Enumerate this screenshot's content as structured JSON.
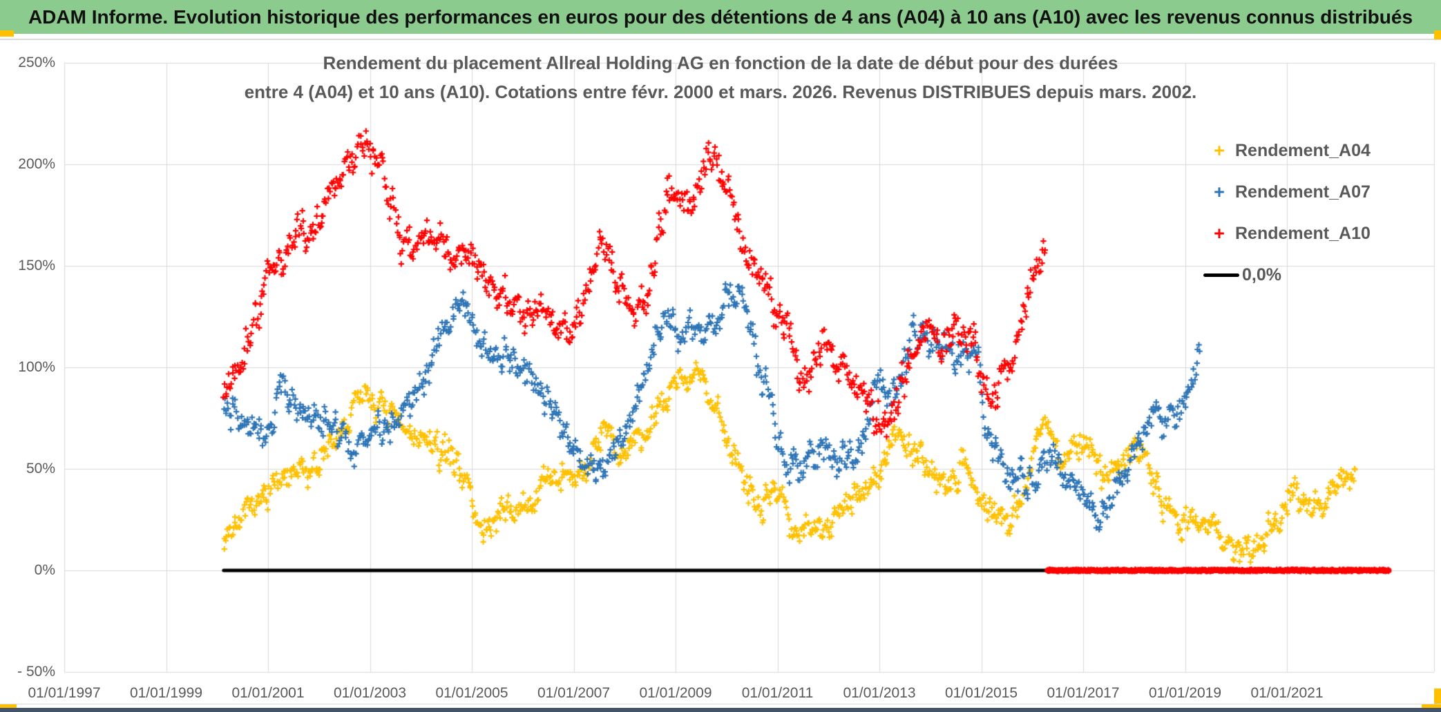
{
  "header": {
    "title": "ADAM Informe. Evolution historique des performances en euros pour des détentions de 4 ans (A04) à 10 ans (A10) avec les revenus connus distribués",
    "bg_color": "#8CCB8E",
    "accent_gold": "#FFC000",
    "divider_color": "#D9D9D9",
    "footer_band_color": "#44546A"
  },
  "chart_data": {
    "type": "scatter",
    "title_line1": "Rendement du placement Allreal Holding AG en fonction de la date de début pour des durées",
    "title_line2": "entre 4 (A04) et 10 ans (A10). Cotations entre févr. 2000 et mars. 2026. Revenus DISTRIBUES depuis mars. 2002.",
    "grid": true,
    "legend_position": "right-inside",
    "style": {
      "text_color": "#595959",
      "grid_color": "#D9D9D9",
      "axis_color": "#C9C9C9",
      "background": "#FFFFFF"
    },
    "x_axis": {
      "type": "date",
      "range_years": [
        1997.0,
        2023.9
      ],
      "tick_years": [
        1997,
        1999,
        2001,
        2003,
        2005,
        2007,
        2009,
        2011,
        2013,
        2015,
        2017,
        2019,
        2021
      ],
      "tick_labels": [
        "01/01/1997",
        "01/01/1999",
        "01/01/2001",
        "01/01/2003",
        "01/01/2005",
        "01/01/2007",
        "01/01/2009",
        "01/01/2011",
        "01/01/2013",
        "01/01/2015",
        "01/01/2017",
        "01/01/2019",
        "01/01/2021"
      ]
    },
    "y_axis": {
      "range_pct": [
        -50,
        250
      ],
      "tick_values": [
        250,
        200,
        150,
        100,
        50,
        0,
        -50
      ],
      "tick_labels": [
        "250%",
        "200%",
        "150%",
        "100%",
        "50%",
        "0%",
        "- 50%"
      ]
    },
    "zero_line": {
      "label": "0,0%",
      "color": "#000000",
      "value_pct": 0.0,
      "start_year": 2000.13,
      "end_year": 2016.3
    },
    "series": [
      {
        "name": "Rendement_A04",
        "color": "#FFC000",
        "marker": "+",
        "start_year": 2000.13,
        "end_year": 2022.35,
        "scatter_band_pct": 9,
        "anchors_year_pct": [
          [
            2000.15,
            18
          ],
          [
            2000.5,
            25
          ],
          [
            2000.8,
            32
          ],
          [
            2001.1,
            42
          ],
          [
            2001.4,
            45
          ],
          [
            2001.7,
            48
          ],
          [
            2002.0,
            53
          ],
          [
            2002.3,
            62
          ],
          [
            2002.6,
            75
          ],
          [
            2002.9,
            90
          ],
          [
            2003.1,
            84
          ],
          [
            2003.35,
            78
          ],
          [
            2003.6,
            70
          ],
          [
            2003.9,
            66
          ],
          [
            2004.15,
            62
          ],
          [
            2004.4,
            58
          ],
          [
            2004.65,
            55
          ],
          [
            2004.9,
            46
          ],
          [
            2005.05,
            25
          ],
          [
            2005.3,
            20
          ],
          [
            2005.6,
            28
          ],
          [
            2005.9,
            30
          ],
          [
            2006.2,
            33
          ],
          [
            2006.5,
            45
          ],
          [
            2006.8,
            50
          ],
          [
            2007.05,
            44
          ],
          [
            2007.3,
            55
          ],
          [
            2007.6,
            74
          ],
          [
            2007.85,
            58
          ],
          [
            2008.1,
            58
          ],
          [
            2008.35,
            63
          ],
          [
            2008.6,
            77
          ],
          [
            2008.9,
            92
          ],
          [
            2009.2,
            95
          ],
          [
            2009.5,
            97
          ],
          [
            2009.8,
            78
          ],
          [
            2010.1,
            60
          ],
          [
            2010.45,
            42
          ],
          [
            2010.7,
            31
          ],
          [
            2011.0,
            42
          ],
          [
            2011.3,
            22
          ],
          [
            2011.6,
            22
          ],
          [
            2011.9,
            23
          ],
          [
            2012.2,
            27
          ],
          [
            2012.5,
            35
          ],
          [
            2012.8,
            40
          ],
          [
            2013.05,
            48
          ],
          [
            2013.25,
            70
          ],
          [
            2013.5,
            62
          ],
          [
            2013.8,
            55
          ],
          [
            2014.1,
            45
          ],
          [
            2014.4,
            46
          ],
          [
            2014.7,
            53
          ],
          [
            2015.0,
            35
          ],
          [
            2015.3,
            28
          ],
          [
            2015.6,
            23
          ],
          [
            2015.9,
            45
          ],
          [
            2016.2,
            78
          ],
          [
            2016.5,
            55
          ],
          [
            2016.8,
            60
          ],
          [
            2017.1,
            62
          ],
          [
            2017.4,
            45
          ],
          [
            2017.7,
            50
          ],
          [
            2018.0,
            60
          ],
          [
            2018.25,
            57
          ],
          [
            2018.55,
            37
          ],
          [
            2018.85,
            27
          ],
          [
            2019.15,
            20
          ],
          [
            2019.5,
            25
          ],
          [
            2019.9,
            11
          ],
          [
            2020.1,
            8
          ],
          [
            2020.4,
            13
          ],
          [
            2020.7,
            22
          ],
          [
            2021.0,
            35
          ],
          [
            2021.15,
            44
          ],
          [
            2021.4,
            28
          ],
          [
            2021.7,
            34
          ],
          [
            2022.0,
            45
          ],
          [
            2022.3,
            47
          ]
        ]
      },
      {
        "name": "Rendement_A07",
        "color": "#2E75B6",
        "marker": "+",
        "start_year": 2000.13,
        "end_year": 2019.3,
        "scatter_band_pct": 10,
        "anchors_year_pct": [
          [
            2000.15,
            80
          ],
          [
            2000.5,
            73
          ],
          [
            2000.8,
            68
          ],
          [
            2001.05,
            70
          ],
          [
            2001.25,
            97
          ],
          [
            2001.5,
            85
          ],
          [
            2001.8,
            78
          ],
          [
            2002.1,
            75
          ],
          [
            2002.45,
            66
          ],
          [
            2002.7,
            60
          ],
          [
            2003.0,
            72
          ],
          [
            2003.3,
            72
          ],
          [
            2003.6,
            78
          ],
          [
            2003.9,
            88
          ],
          [
            2004.15,
            98
          ],
          [
            2004.45,
            115
          ],
          [
            2004.7,
            127
          ],
          [
            2004.9,
            131
          ],
          [
            2005.1,
            115
          ],
          [
            2005.4,
            108
          ],
          [
            2005.7,
            106
          ],
          [
            2006.0,
            101
          ],
          [
            2006.2,
            95
          ],
          [
            2006.45,
            85
          ],
          [
            2006.7,
            75
          ],
          [
            2007.0,
            60
          ],
          [
            2007.3,
            50
          ],
          [
            2007.55,
            45
          ],
          [
            2007.8,
            62
          ],
          [
            2008.1,
            73
          ],
          [
            2008.35,
            95
          ],
          [
            2008.6,
            114
          ],
          [
            2008.85,
            127
          ],
          [
            2009.1,
            113
          ],
          [
            2009.35,
            120
          ],
          [
            2009.6,
            116
          ],
          [
            2009.9,
            128
          ],
          [
            2010.15,
            135
          ],
          [
            2010.3,
            142
          ],
          [
            2010.55,
            112
          ],
          [
            2010.8,
            85
          ],
          [
            2011.1,
            58
          ],
          [
            2011.45,
            50
          ],
          [
            2011.8,
            54
          ],
          [
            2012.1,
            52
          ],
          [
            2012.4,
            53
          ],
          [
            2012.7,
            64
          ],
          [
            2012.95,
            100
          ],
          [
            2013.2,
            82
          ],
          [
            2013.45,
            95
          ],
          [
            2013.7,
            121
          ],
          [
            2014.0,
            112
          ],
          [
            2014.3,
            110
          ],
          [
            2014.6,
            104
          ],
          [
            2014.9,
            106
          ],
          [
            2015.1,
            72
          ],
          [
            2015.4,
            52
          ],
          [
            2015.7,
            46
          ],
          [
            2016.0,
            42
          ],
          [
            2016.3,
            56
          ],
          [
            2016.6,
            50
          ],
          [
            2016.9,
            44
          ],
          [
            2017.1,
            35
          ],
          [
            2017.35,
            27
          ],
          [
            2017.6,
            38
          ],
          [
            2017.85,
            52
          ],
          [
            2018.1,
            65
          ],
          [
            2018.35,
            78
          ],
          [
            2018.6,
            74
          ],
          [
            2018.85,
            78
          ],
          [
            2019.05,
            88
          ],
          [
            2019.25,
            104
          ]
        ]
      },
      {
        "name": "Rendement_A10",
        "color": "#FF0000",
        "marker": "+",
        "start_year": 2000.13,
        "end_year": 2016.27,
        "scatter_band_pct": 11,
        "zero_tail_years": [
          2016.3,
          2023.0
        ],
        "anchors_year_pct": [
          [
            2000.15,
            90
          ],
          [
            2000.45,
            102
          ],
          [
            2000.7,
            122
          ],
          [
            2000.95,
            140
          ],
          [
            2001.15,
            150
          ],
          [
            2001.4,
            155
          ],
          [
            2001.65,
            172
          ],
          [
            2001.85,
            163
          ],
          [
            2002.1,
            178
          ],
          [
            2002.4,
            195
          ],
          [
            2002.7,
            200
          ],
          [
            2002.95,
            212
          ],
          [
            2003.15,
            197
          ],
          [
            2003.4,
            180
          ],
          [
            2003.6,
            166
          ],
          [
            2003.8,
            158
          ],
          [
            2004.0,
            168
          ],
          [
            2004.25,
            162
          ],
          [
            2004.5,
            160
          ],
          [
            2004.75,
            153
          ],
          [
            2005.0,
            152
          ],
          [
            2005.3,
            140
          ],
          [
            2005.6,
            133
          ],
          [
            2005.9,
            126
          ],
          [
            2006.2,
            126
          ],
          [
            2006.5,
            129
          ],
          [
            2006.8,
            120
          ],
          [
            2007.0,
            112
          ],
          [
            2007.25,
            135
          ],
          [
            2007.5,
            166
          ],
          [
            2007.75,
            150
          ],
          [
            2008.0,
            135
          ],
          [
            2008.2,
            125
          ],
          [
            2008.45,
            136
          ],
          [
            2008.65,
            162
          ],
          [
            2008.85,
            188
          ],
          [
            2009.1,
            180
          ],
          [
            2009.35,
            182
          ],
          [
            2009.55,
            195
          ],
          [
            2009.75,
            206
          ],
          [
            2009.95,
            192
          ],
          [
            2010.2,
            170
          ],
          [
            2010.5,
            150
          ],
          [
            2010.8,
            140
          ],
          [
            2011.1,
            122
          ],
          [
            2011.4,
            100
          ],
          [
            2011.6,
            92
          ],
          [
            2011.9,
            117
          ],
          [
            2012.1,
            108
          ],
          [
            2012.4,
            95
          ],
          [
            2012.7,
            84
          ],
          [
            2013.0,
            75
          ],
          [
            2013.2,
            72
          ],
          [
            2013.5,
            95
          ],
          [
            2013.75,
            112
          ],
          [
            2014.0,
            116
          ],
          [
            2014.3,
            114
          ],
          [
            2014.6,
            118
          ],
          [
            2014.85,
            119
          ],
          [
            2015.05,
            88
          ],
          [
            2015.25,
            80
          ],
          [
            2015.5,
            98
          ],
          [
            2015.75,
            122
          ],
          [
            2016.0,
            145
          ],
          [
            2016.25,
            161
          ]
        ]
      }
    ],
    "legend": {
      "items": [
        "Rendement_A04",
        "Rendement_A07",
        "Rendement_A10"
      ],
      "zero_item_label": "0,0%"
    }
  }
}
